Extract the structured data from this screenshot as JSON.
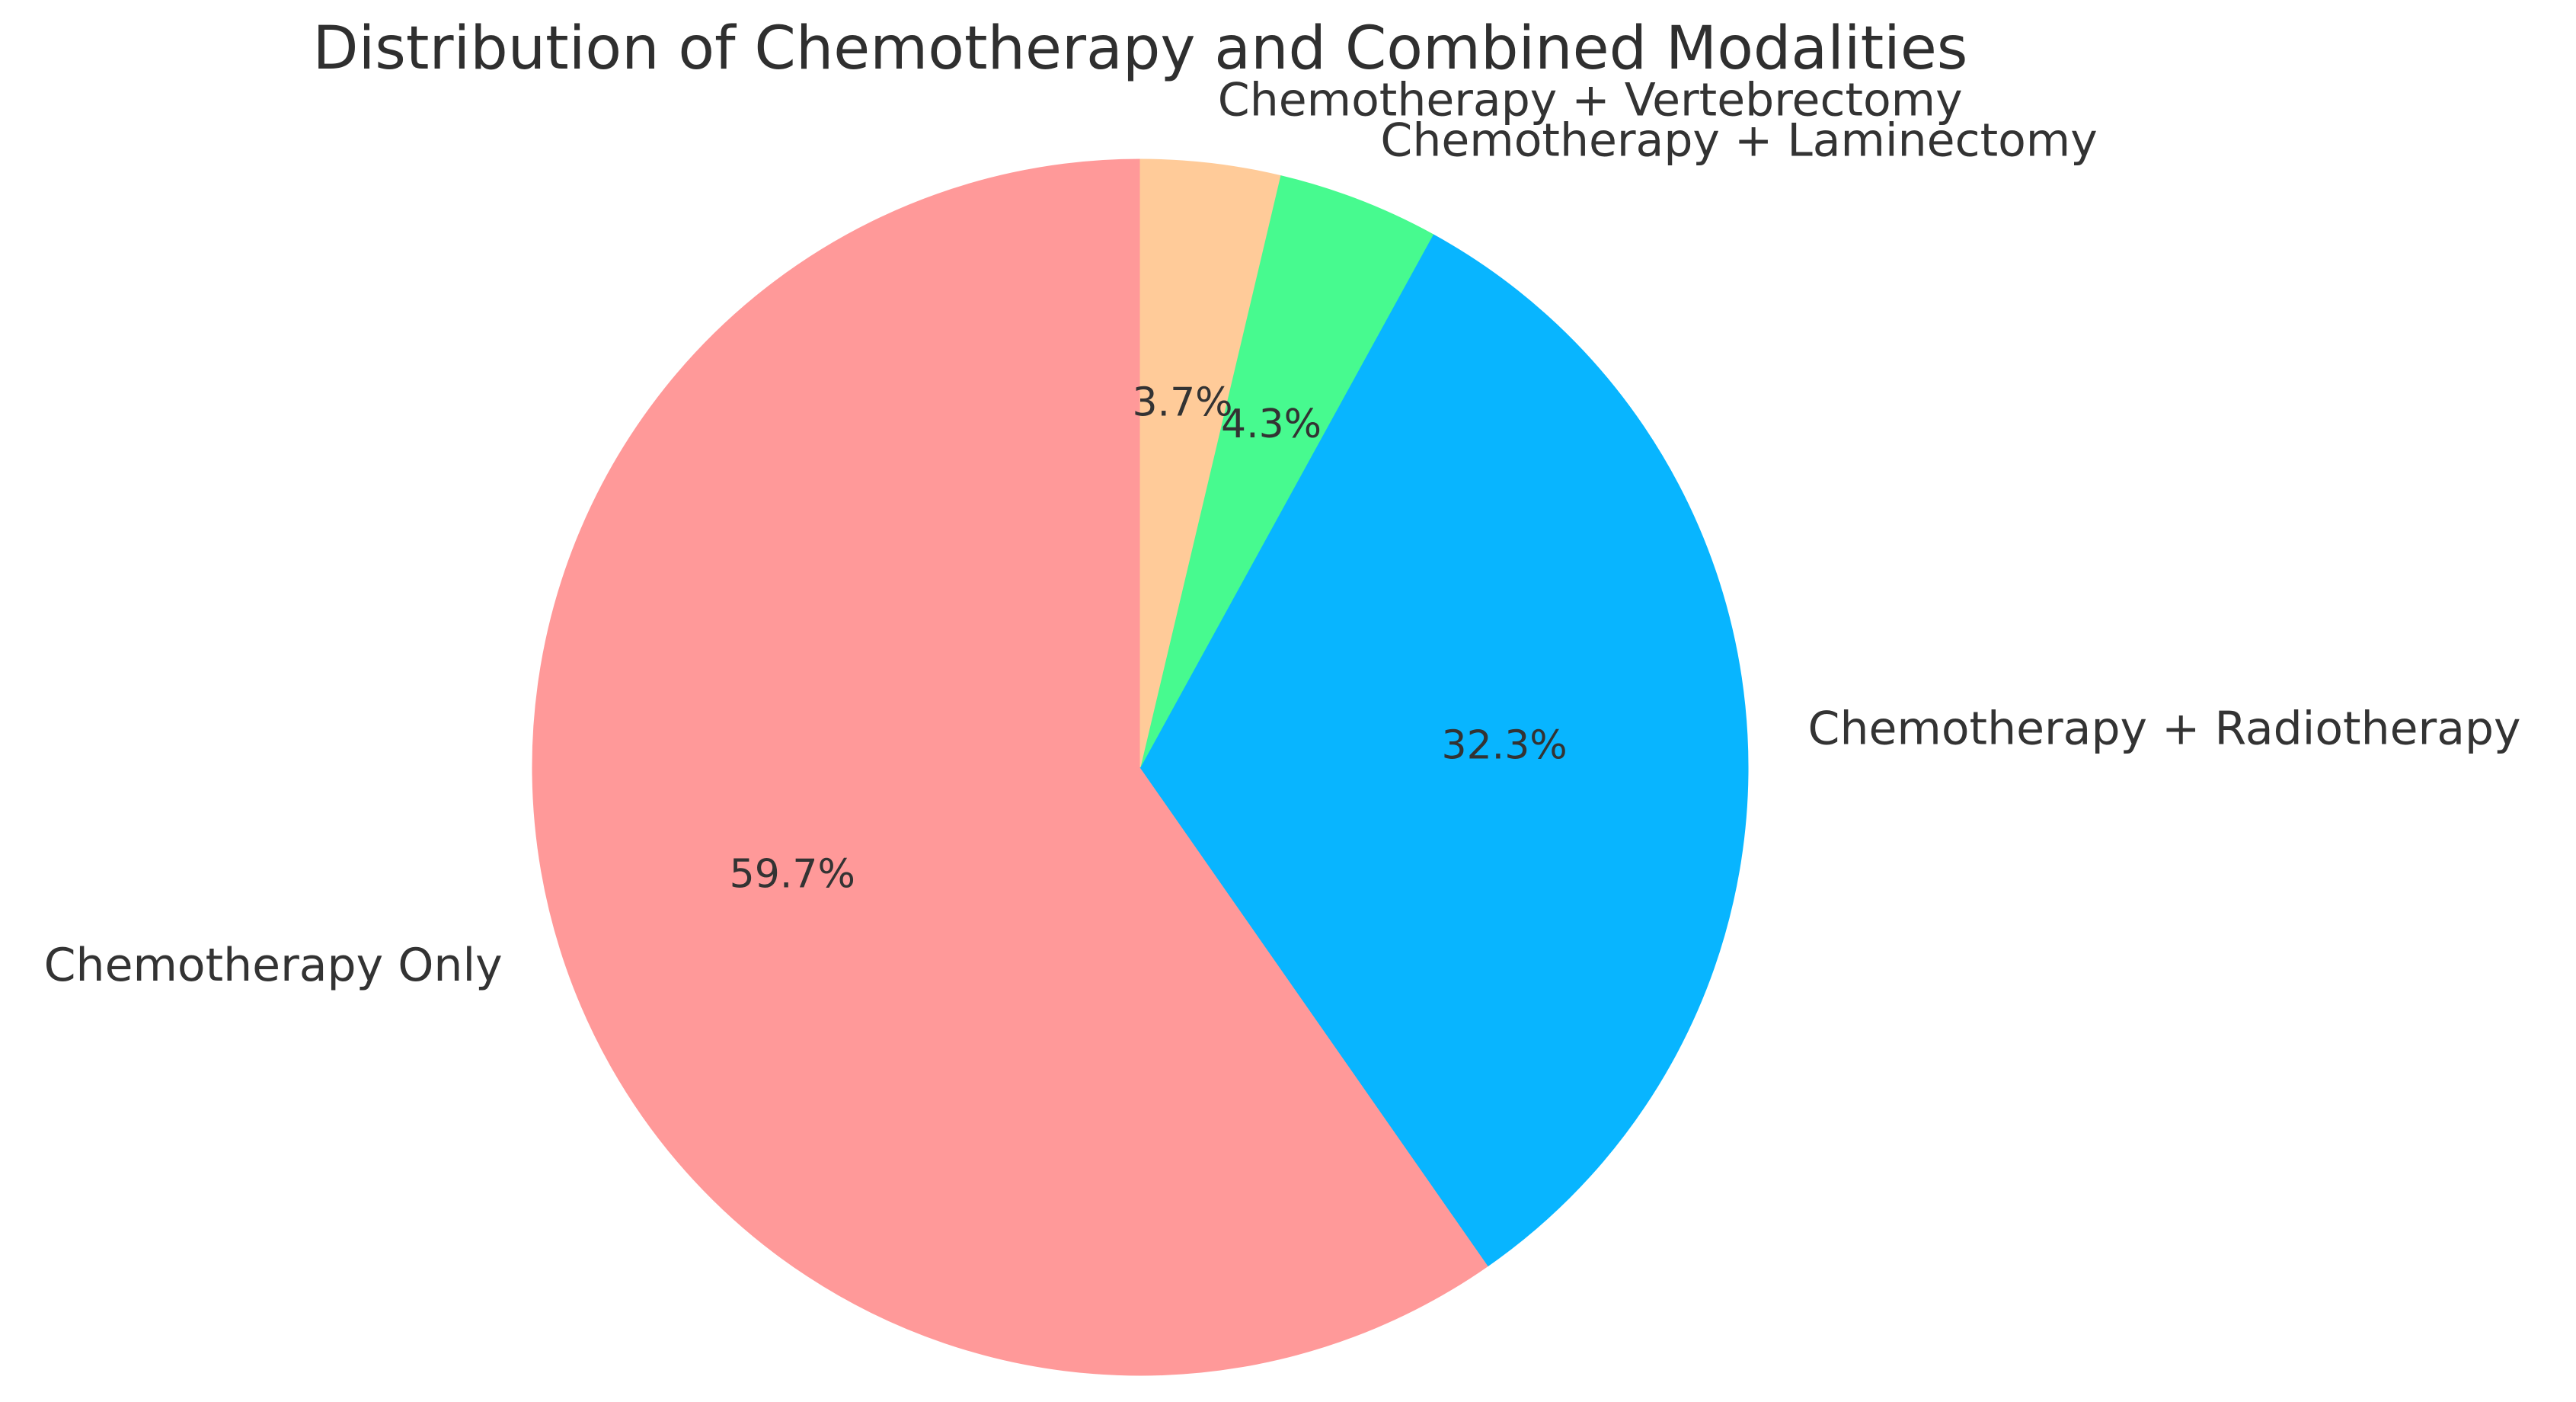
{
  "chart_data": {
    "type": "pie",
    "title": "Distribution of Chemotherapy and Combined Modalities",
    "start_angle_deg": 90,
    "direction": "counterclockwise",
    "slices": [
      {
        "label": "Chemotherapy Only",
        "value": 59.7,
        "percent_label": "59.7%",
        "color": "#ff9999"
      },
      {
        "label": "Chemotherapy + Radiotherapy",
        "value": 32.3,
        "percent_label": "32.3%",
        "color": "#08b5ff"
      },
      {
        "label": "Chemotherapy + Laminectomy",
        "value": 4.3,
        "percent_label": "4.3%",
        "color": "#47fa8f"
      },
      {
        "label": "Chemotherapy + Vertebrectomy",
        "value": 3.7,
        "percent_label": "3.7%",
        "color": "#ffcb99"
      }
    ]
  }
}
